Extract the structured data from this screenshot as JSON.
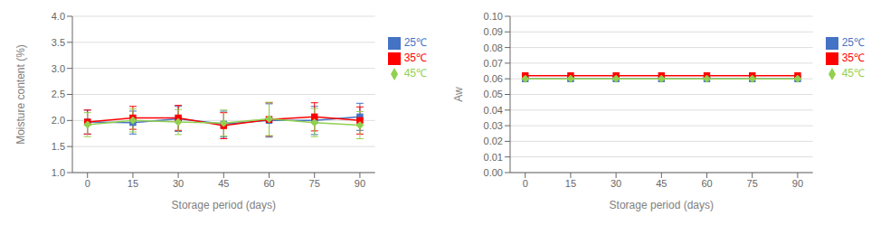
{
  "chart_data": [
    {
      "type": "line",
      "x": [
        0,
        15,
        30,
        45,
        60,
        75,
        90
      ],
      "xlabel": "Storage period (days)",
      "ylabel": "Moisture content (%)",
      "xlim": [
        -5,
        95
      ],
      "xticks": [
        0,
        15,
        30,
        45,
        60,
        75,
        90
      ],
      "ylim": [
        1.0,
        4.0
      ],
      "yticks": [
        {
          "value": 1.0,
          "label": "1.0"
        },
        1.5,
        {
          "value": 2.0,
          "label": "2.0"
        },
        2.5,
        {
          "value": 3.0,
          "label": "3.0"
        },
        3.5,
        {
          "value": 4.0,
          "label": "4.0"
        }
      ],
      "grid": true,
      "legend": "right",
      "series": [
        {
          "name": "25℃",
          "color": "#4472C4",
          "marker": "square",
          "values": [
            1.97,
            1.96,
            2.03,
            1.93,
            2.0,
            2.0,
            2.07
          ],
          "errors": [
            0.23,
            0.22,
            0.24,
            0.25,
            0.32,
            0.27,
            0.26
          ]
        },
        {
          "name": "35℃",
          "color": "#FF0000",
          "marker": "square",
          "values": [
            1.97,
            2.05,
            2.05,
            1.9,
            2.02,
            2.07,
            2.0
          ],
          "errors": [
            0.23,
            0.22,
            0.24,
            0.25,
            0.32,
            0.27,
            0.26
          ]
        },
        {
          "name": "45℃",
          "color": "#92D050",
          "marker": "diamond",
          "values": [
            1.92,
            2.0,
            1.97,
            1.95,
            2.03,
            1.96,
            1.91
          ],
          "errors": [
            0.23,
            0.22,
            0.24,
            0.25,
            0.32,
            0.27,
            0.26
          ]
        }
      ]
    },
    {
      "type": "line",
      "x": [
        0,
        15,
        30,
        45,
        60,
        75,
        90
      ],
      "xlabel": "Storage period (days)",
      "ylabel": "Aw",
      "xlim": [
        -5,
        95
      ],
      "xticks": [
        0,
        15,
        30,
        45,
        60,
        75,
        90
      ],
      "ylim": [
        0,
        0.1
      ],
      "yticks": [
        {
          "value": 0,
          "label": "0.00"
        },
        0.01,
        0.02,
        0.03,
        0.04,
        0.05,
        0.06,
        0.07,
        0.08,
        0.09,
        {
          "value": 0.1,
          "label": "0.10"
        }
      ],
      "grid": true,
      "legend": "right",
      "series": [
        {
          "name": "25℃",
          "color": "#4472C4",
          "marker": "square",
          "values": [
            0.06,
            0.06,
            0.06,
            0.06,
            0.06,
            0.06,
            0.06
          ]
        },
        {
          "name": "35℃",
          "color": "#FF0000",
          "marker": "square",
          "values": [
            0.062,
            0.062,
            0.062,
            0.062,
            0.062,
            0.062,
            0.062
          ]
        },
        {
          "name": "45℃",
          "color": "#92D050",
          "marker": "diamond",
          "values": [
            0.06,
            0.06,
            0.06,
            0.06,
            0.06,
            0.06,
            0.06
          ]
        }
      ]
    }
  ]
}
